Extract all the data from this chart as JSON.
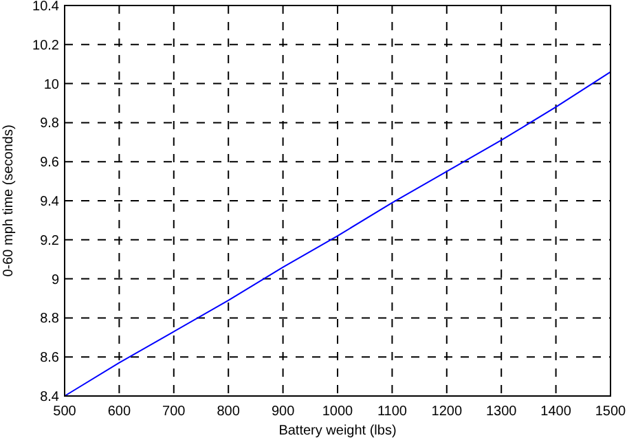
{
  "chart_data": {
    "type": "line",
    "xlabel": "Battery weight (lbs)",
    "ylabel": "0-60 mph time (seconds)",
    "x": [
      500,
      600,
      700,
      800,
      900,
      1000,
      1100,
      1200,
      1300,
      1400,
      1500
    ],
    "series": [
      {
        "color": "#0000ff",
        "values": [
          8.4,
          8.57,
          8.73,
          8.89,
          9.06,
          9.22,
          9.39,
          9.55,
          9.71,
          9.88,
          10.06
        ]
      }
    ],
    "xlim": [
      500,
      1500
    ],
    "xticks": [
      500,
      600,
      700,
      800,
      900,
      1000,
      1100,
      1200,
      1300,
      1400,
      1500
    ],
    "ylim": [
      8.4,
      10.4
    ],
    "yticks": [
      8.4,
      8.6,
      8.8,
      9,
      9.2,
      9.4,
      9.6,
      9.8,
      10,
      10.2,
      10.4
    ],
    "grid": true,
    "line_style": "solid",
    "marker": "none"
  }
}
